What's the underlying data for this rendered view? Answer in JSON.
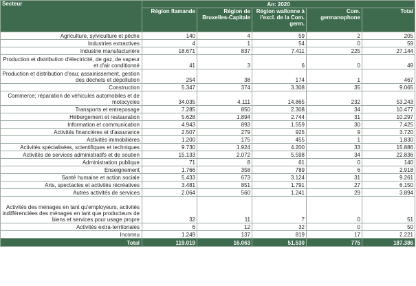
{
  "header": {
    "secteur": "Secteur",
    "year": "An: 2020",
    "columns": [
      "Région flamande",
      "Région de Bruxelles-Capitale",
      "Région wallonne à l'excl. de la Com. germ.",
      "Com. germanophone",
      "Total"
    ]
  },
  "rows": [
    {
      "label": "Agriculture, sylviculture et pêche",
      "values": [
        "140",
        "4",
        "59",
        "2",
        "205"
      ]
    },
    {
      "label": "Industries extractives",
      "values": [
        "4",
        "1",
        "54",
        "0",
        "59"
      ]
    },
    {
      "label": "Industrie manufacturière",
      "values": [
        "18.671",
        "837",
        "7.411",
        "225",
        "27.144"
      ]
    },
    {
      "label": "Production et distribution d'électricité, de gaz, de vapeur et d'air conditionné",
      "values": [
        "41",
        "3",
        "6",
        "0",
        "49"
      ]
    },
    {
      "label": "Production et distribution d'eau; assainissement, gestion des déchets et dépollution",
      "values": [
        "254",
        "38",
        "174",
        "1",
        "467"
      ]
    },
    {
      "label": "Construction",
      "values": [
        "5.347",
        "374",
        "3.308",
        "35",
        "9.065"
      ]
    },
    {
      "label": "Commerce; réparation de véhicules automobiles et de motocycles",
      "values": [
        "34.035",
        "4.111",
        "14.865",
        "232",
        "53.243"
      ]
    },
    {
      "label": "Transports et entreposage",
      "values": [
        "7.285",
        "850",
        "2.308",
        "34",
        "10.477"
      ]
    },
    {
      "label": "Hébergement et restauration",
      "values": [
        "5.628",
        "1.894",
        "2.744",
        "31",
        "10.297"
      ]
    },
    {
      "label": "Information et communication",
      "values": [
        "4.943",
        "893",
        "1.559",
        "30",
        "7.425"
      ]
    },
    {
      "label": "Activités financières et d'assurance",
      "values": [
        "2.507",
        "279",
        "925",
        "9",
        "3.720"
      ]
    },
    {
      "label": "Activités immobilières",
      "values": [
        "1.200",
        "175",
        "455",
        "1",
        "1.830"
      ]
    },
    {
      "label": "Activités spécialisées, scientifiques et techniques",
      "values": [
        "9.730",
        "1.924",
        "4.200",
        "33",
        "15.886"
      ]
    },
    {
      "label": "Activités de services administratifs et de soutien",
      "values": [
        "15.133",
        "2.072",
        "5.598",
        "34",
        "22.836"
      ]
    },
    {
      "label": "Administration publique",
      "values": [
        "71",
        "8",
        "61",
        "0",
        "140"
      ]
    },
    {
      "label": "Enseignement",
      "values": [
        "1.766",
        "358",
        "789",
        "6",
        "2.918"
      ]
    },
    {
      "label": "Santé humaine et action sociale",
      "values": [
        "5.433",
        "673",
        "3.124",
        "31",
        "9.261"
      ]
    },
    {
      "label": "Arts, spectacles et activités récréatives",
      "values": [
        "3.481",
        "851",
        "1.791",
        "27",
        "6.150"
      ]
    },
    {
      "label": "Autres activités de services",
      "values": [
        "2.064",
        "560",
        "1.241",
        "29",
        "3.894"
      ]
    },
    {
      "label": "Activités des ménages en tant qu'employeurs, activités indifférenciées des ménages en tant que producteurs de biens et services pour usage propre",
      "values": [
        "32",
        "11",
        "7",
        "0",
        "51"
      ]
    },
    {
      "label": "Activités extra-territoriales",
      "values": [
        "6",
        "12",
        "32",
        "0",
        "50"
      ]
    },
    {
      "label": "Inconnu",
      "values": [
        "1.249",
        "137",
        "819",
        "17",
        "2.221"
      ]
    }
  ],
  "total": {
    "label": "Total",
    "values": [
      "119.019",
      "16.063",
      "51.530",
      "775",
      "187.386"
    ]
  },
  "colors": {
    "header_bg": "#3e6b4e",
    "border": "#9aaa9e"
  }
}
